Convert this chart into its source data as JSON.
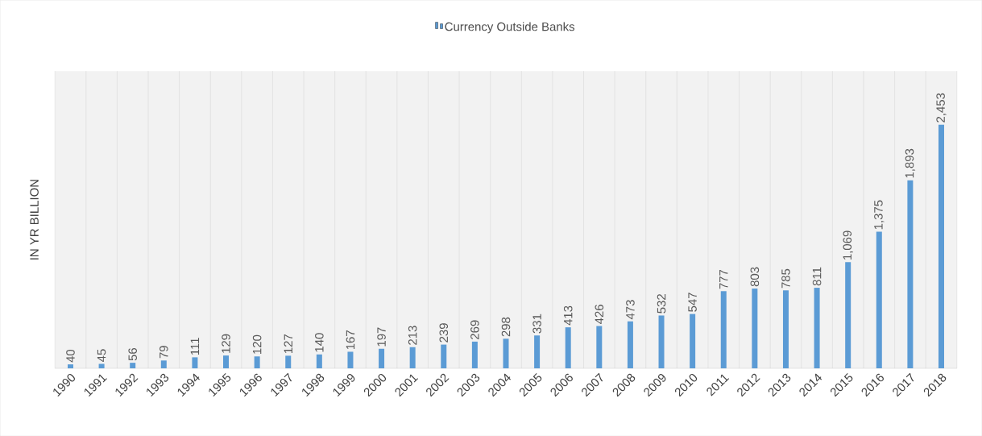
{
  "chart_data": {
    "type": "bar",
    "ylabel": "IN YR BILLION",
    "legend": "top",
    "grid": "x",
    "tick_labels": "x",
    "categories": [
      "1990",
      "1991",
      "1992",
      "1993",
      "1994",
      "1995",
      "1996",
      "1997",
      "1998",
      "1999",
      "2000",
      "2001",
      "2002",
      "2003",
      "2004",
      "2005",
      "2006",
      "2007",
      "2008",
      "2009",
      "2010",
      "2011",
      "2012",
      "2013",
      "2014",
      "2015",
      "2016",
      "2017",
      "2018"
    ],
    "series": [
      {
        "name": "Currency Outside Banks",
        "color": "#5b9bd5",
        "values": [
          40,
          45,
          56,
          79,
          111,
          129,
          120,
          127,
          140,
          167,
          197,
          213,
          239,
          269,
          298,
          331,
          413,
          426,
          473,
          532,
          547,
          777,
          803,
          785,
          811,
          1069,
          1375,
          1893,
          2453
        ],
        "value_labels": [
          "40",
          "45",
          "56",
          "79",
          "111",
          "129",
          "120",
          "127",
          "140",
          "167",
          "197",
          "213",
          "239",
          "269",
          "298",
          "331",
          "413",
          "426",
          "473",
          "532",
          "547",
          "777",
          "803",
          "785",
          "811",
          "1,069",
          "1,375",
          "1,893",
          "2,453"
        ]
      }
    ]
  }
}
